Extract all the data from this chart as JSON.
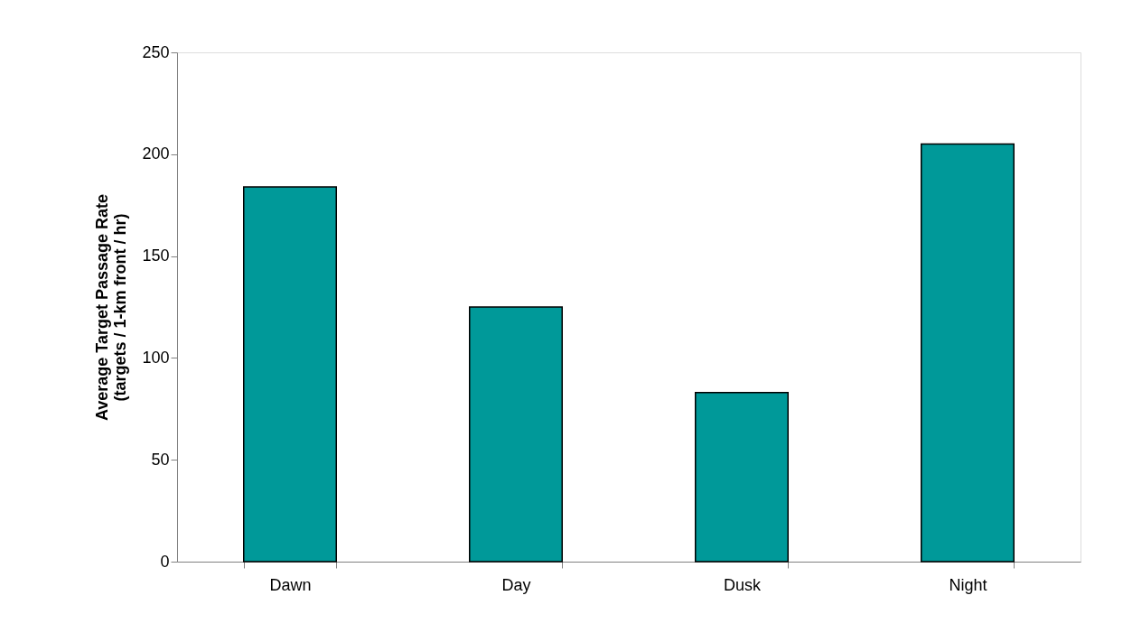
{
  "chart_data": {
    "type": "bar",
    "ylabel": "Average Target Passage Rate\n(targets / 1-km front / hr)",
    "categories": [
      "Dawn",
      "Day",
      "Dusk",
      "Night"
    ],
    "values": [
      184,
      125,
      83,
      205
    ],
    "color": "#009999",
    "ylim": [
      0,
      250
    ],
    "yticks": [
      0,
      50,
      100,
      150,
      200,
      250
    ],
    "grid": false
  }
}
